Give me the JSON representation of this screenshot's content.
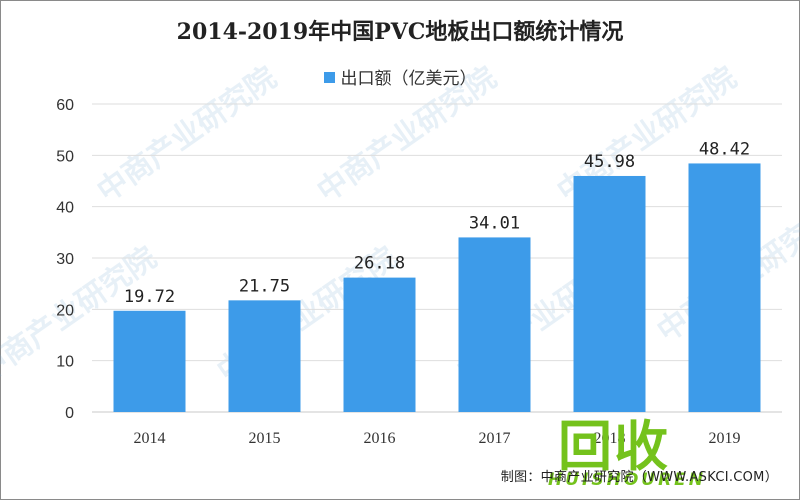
{
  "title": "2014-2019年中国PVC地板出口额统计情况",
  "legend": {
    "label": "出口额（亿美元）",
    "color": "#3d9be9"
  },
  "source": "制图：中商产业研究院（WWW.ASKCI.COM）",
  "watermark": "中商产业研究院",
  "logo": {
    "main": "回收",
    "sub": "HUISHOUREN"
  },
  "chart_data": {
    "type": "bar",
    "categories": [
      "2014",
      "2015",
      "2016",
      "2017",
      "2018",
      "2019"
    ],
    "series": [
      {
        "name": "出口额（亿美元）",
        "values": [
          19.72,
          21.75,
          26.18,
          34.01,
          45.98,
          48.42
        ],
        "color": "#3d9be9"
      }
    ],
    "data_labels": [
      "19.72",
      "21.75",
      "26.18",
      "34.01",
      "45.98",
      "48.42"
    ],
    "ylim": [
      0,
      60
    ],
    "yticks": [
      0,
      10,
      20,
      30,
      40,
      50,
      60
    ],
    "grid": true,
    "legend_position": "top-center",
    "title": "2014-2019年中国PVC地板出口额统计情况",
    "xlabel": "",
    "ylabel": ""
  }
}
